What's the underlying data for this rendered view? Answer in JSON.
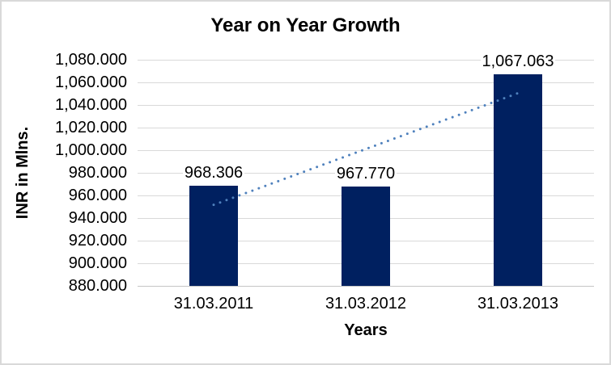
{
  "chart_data": {
    "type": "bar",
    "title": "Year on Year Growth",
    "categories": [
      "31.03.2011",
      "31.03.2012",
      "31.03.2013"
    ],
    "series": [
      {
        "name": "INR in Mlns.",
        "values": [
          968.306,
          967.77,
          1067.063
        ]
      }
    ],
    "data_labels": [
      "968.306",
      "967.770",
      "1,067.063"
    ],
    "xlabel": "Years",
    "ylabel": "INR in Mlns.",
    "ylim": [
      880,
      1080
    ],
    "ytick_step": 20,
    "ytick_labels": [
      "880.000",
      "900.000",
      "920.000",
      "940.000",
      "960.000",
      "980.000",
      "1,000.000",
      "1,020.000",
      "1,040.000",
      "1,060.000",
      "1,080.000"
    ],
    "grid": true,
    "legend": false,
    "trendline": {
      "type": "linear",
      "style": "dotted"
    },
    "colors": {
      "bar": "#002060",
      "trendline": "#4f81bd",
      "gridline": "#d9d9d9",
      "axis_line": "#c6c6c6",
      "text": "#000000",
      "border": "#d9d9d9",
      "background": "#ffffff"
    }
  }
}
